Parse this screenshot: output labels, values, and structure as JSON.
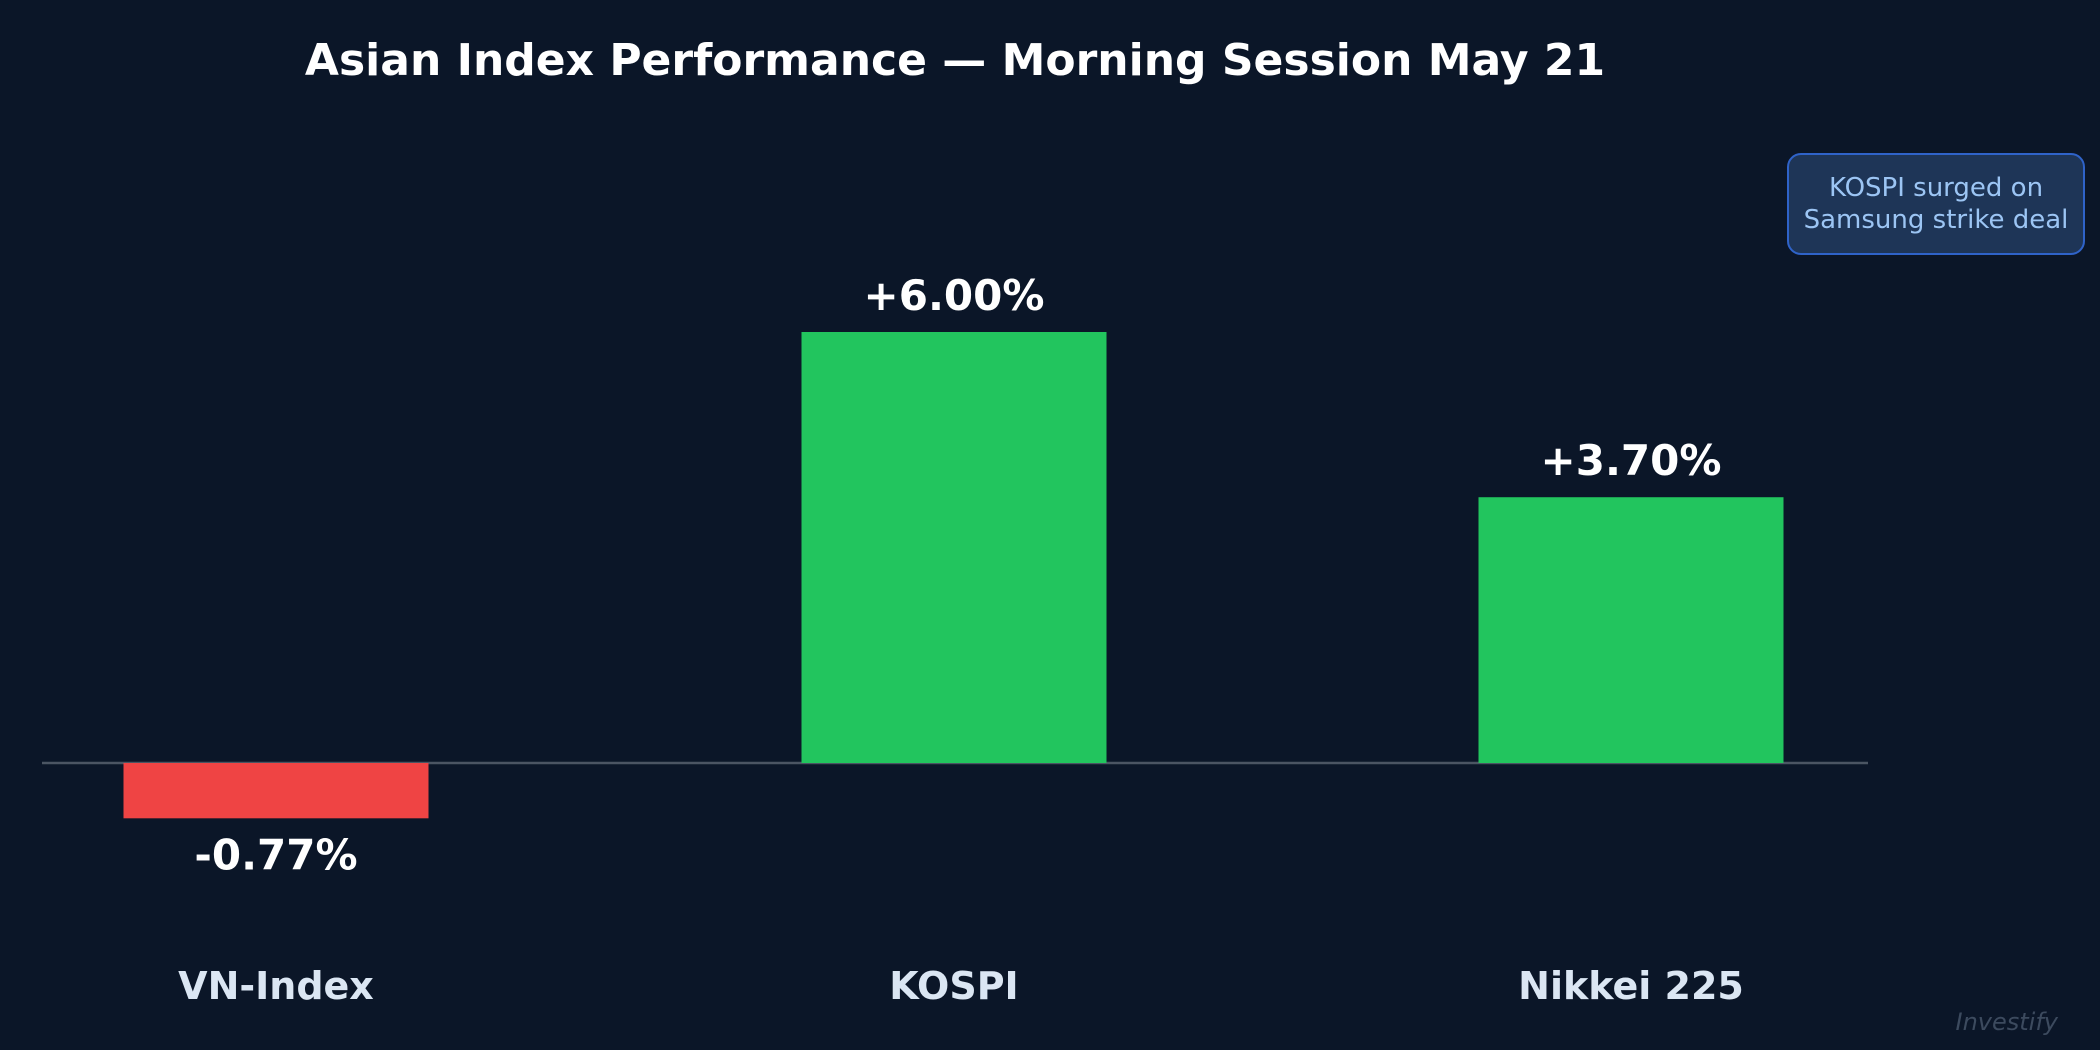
{
  "chart_data": {
    "type": "bar",
    "title": "Asian Index Performance — Morning Session May 21",
    "categories": [
      "VN-Index",
      "KOSPI",
      "Nikkei 225"
    ],
    "values": [
      -0.77,
      6.0,
      3.7
    ],
    "value_labels": [
      "-0.77%",
      "+6.00%",
      "+3.70%"
    ],
    "unit": "%",
    "ylim": [
      -0.77,
      6.0
    ],
    "colors": {
      "positive": "#22c55e",
      "negative": "#ef4444",
      "baseline": "#4b5563",
      "background": "#0b1628"
    },
    "grid": false,
    "legend": "none",
    "annotation": {
      "lines": [
        "KOSPI surged on",
        "Samsung strike deal"
      ]
    }
  },
  "watermark": "Investify"
}
